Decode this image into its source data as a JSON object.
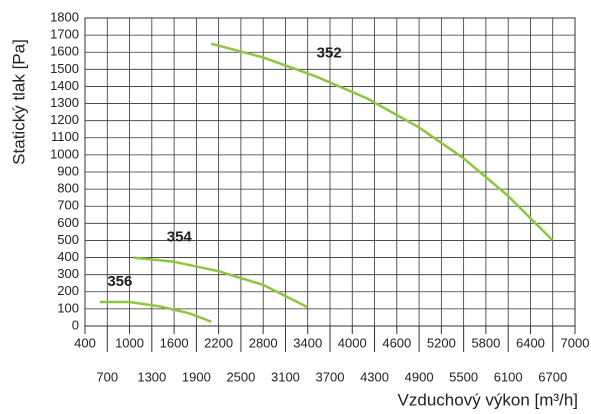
{
  "chart_data": {
    "type": "line",
    "xlabel": "Vzduchový výkon [m³/h]",
    "ylabel": "Statický tlak [Pa]",
    "xlim": [
      400,
      7000
    ],
    "xticks": [
      400,
      700,
      1000,
      1300,
      1600,
      1900,
      2200,
      2500,
      2800,
      3100,
      3400,
      3700,
      4000,
      4300,
      4600,
      4900,
      5200,
      5500,
      5800,
      6100,
      6400,
      6700,
      7000
    ],
    "ylim": [
      0,
      1800
    ],
    "yticks": [
      0,
      100,
      200,
      300,
      400,
      500,
      600,
      700,
      800,
      900,
      1000,
      1100,
      1200,
      1300,
      1400,
      1500,
      1600,
      1700,
      1800
    ],
    "grid": true,
    "series": [
      {
        "name": "352",
        "color": "#8cc63f",
        "x": [
          2100,
          2800,
          3500,
          4200,
          4900,
          5500,
          6100,
          6700
        ],
        "values": [
          1650,
          1570,
          1460,
          1330,
          1160,
          980,
          760,
          500
        ]
      },
      {
        "name": "354",
        "color": "#8cc63f",
        "x": [
          1050,
          1600,
          2200,
          2800,
          3400
        ],
        "values": [
          400,
          375,
          320,
          240,
          110
        ]
      },
      {
        "name": "356",
        "color": "#8cc63f",
        "x": [
          600,
          1000,
          1400,
          1800,
          2100
        ],
        "values": [
          140,
          140,
          115,
          75,
          25
        ]
      }
    ]
  }
}
